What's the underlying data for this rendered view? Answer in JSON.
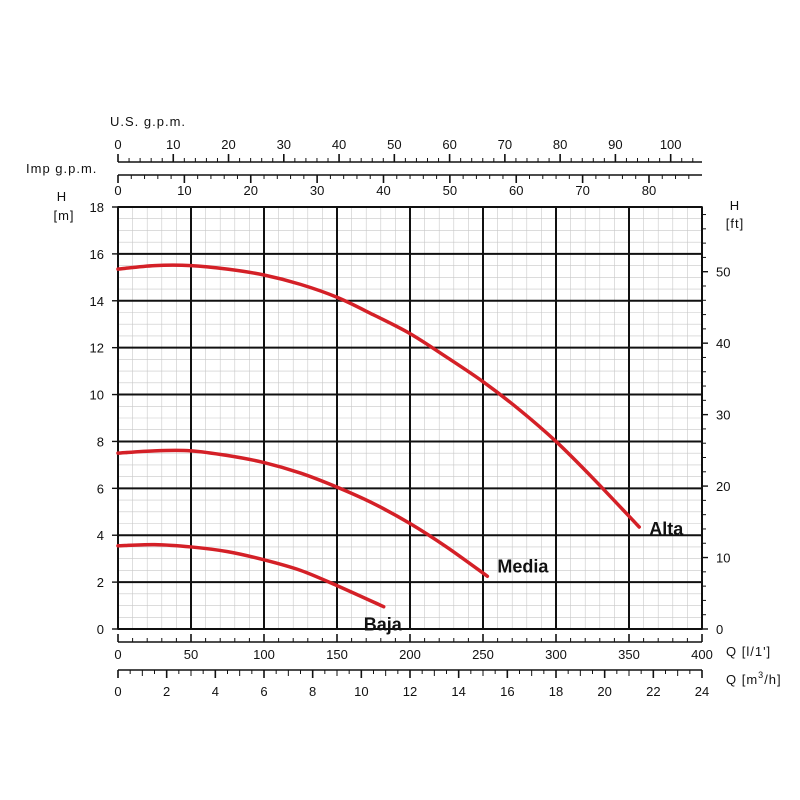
{
  "chart_data": {
    "type": "line",
    "title": "",
    "x_axis_bottom": {
      "label_parts": [
        "Q [l/1",
        "']"
      ],
      "range": [
        0,
        400
      ],
      "ticks": [
        0,
        50,
        100,
        150,
        200,
        250,
        300,
        350,
        400
      ]
    },
    "x_axis_bottom_secondary": {
      "label_parts": [
        "Q [m",
        "3",
        "/h]"
      ],
      "range": [
        0,
        24
      ],
      "ticks": [
        0,
        2,
        4,
        6,
        8,
        10,
        12,
        14,
        16,
        18,
        20,
        22,
        24
      ]
    },
    "x_axis_top_us": {
      "label": "U.S. g.p.m.",
      "ticks": [
        0,
        10,
        20,
        30,
        40,
        50,
        60,
        70,
        80,
        90,
        100
      ]
    },
    "x_axis_top_imp": {
      "label": "Imp g.p.m.",
      "ticks": [
        0,
        10,
        20,
        30,
        40,
        50,
        60,
        70,
        80
      ]
    },
    "y_axis_left": {
      "label_line1": "H",
      "label_line2": "[m]",
      "range": [
        0,
        18
      ],
      "ticks": [
        0,
        2,
        4,
        6,
        8,
        10,
        12,
        14,
        16,
        18
      ]
    },
    "y_axis_right": {
      "label_line1": "H",
      "label_line2": "[ft]",
      "ticks": [
        0,
        10,
        20,
        30,
        40,
        50
      ]
    },
    "grid": true,
    "series": [
      {
        "name": "Alta",
        "color": "#d42027",
        "x": [
          0,
          25,
          50,
          75,
          100,
          125,
          150,
          175,
          200,
          225,
          250,
          275,
          300,
          325,
          357
        ],
        "y": [
          15.35,
          15.5,
          15.5,
          15.35,
          15.1,
          14.7,
          14.15,
          13.4,
          12.6,
          11.6,
          10.55,
          9.35,
          8.0,
          6.45,
          4.35
        ]
      },
      {
        "name": "Media",
        "color": "#d42027",
        "x": [
          0,
          25,
          50,
          75,
          100,
          125,
          150,
          175,
          200,
          225,
          253
        ],
        "y": [
          7.5,
          7.6,
          7.6,
          7.4,
          7.1,
          6.65,
          6.05,
          5.35,
          4.5,
          3.5,
          2.25
        ]
      },
      {
        "name": "Baja",
        "color": "#d42027",
        "x": [
          0,
          25,
          50,
          75,
          100,
          125,
          150,
          182
        ],
        "y": [
          3.55,
          3.6,
          3.5,
          3.3,
          2.95,
          2.5,
          1.85,
          0.95
        ]
      }
    ]
  }
}
